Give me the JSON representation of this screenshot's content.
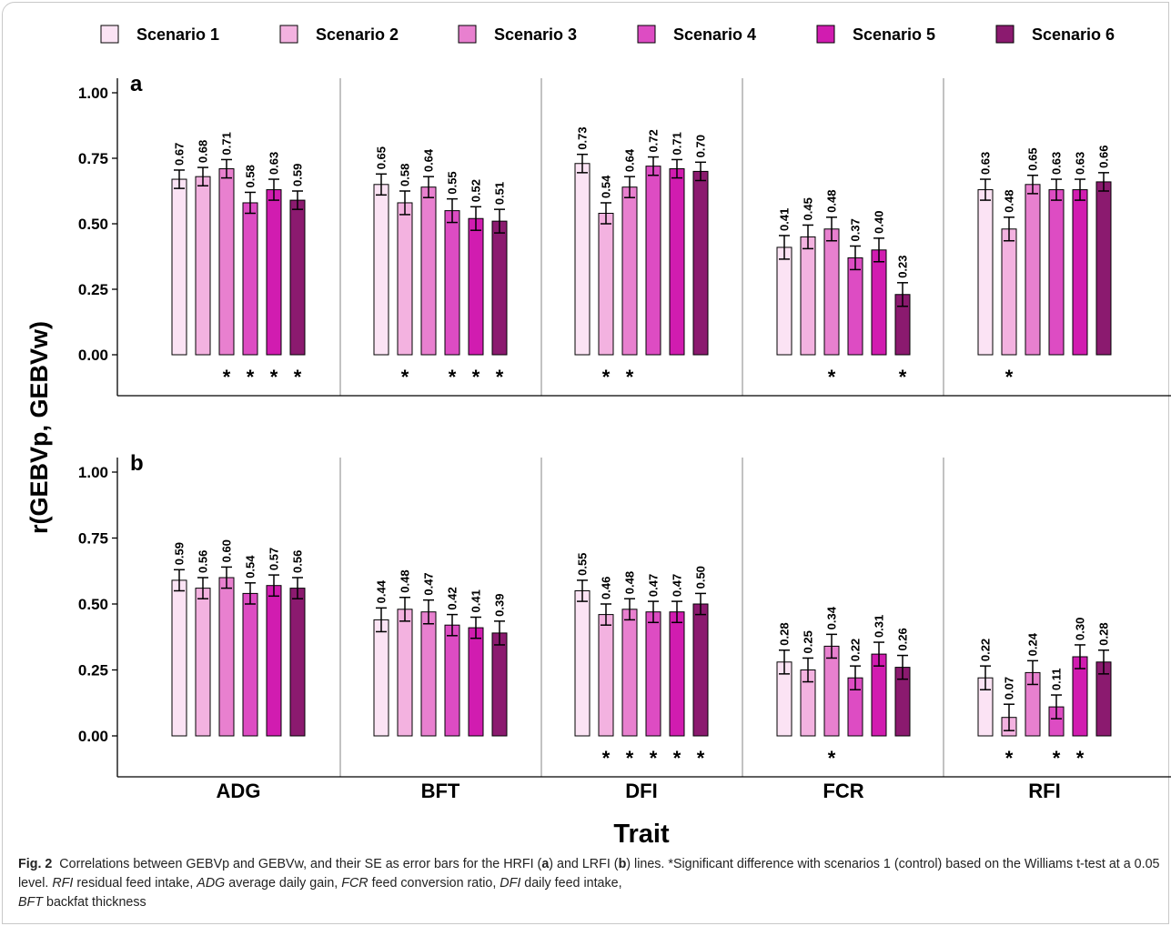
{
  "chart_data": {
    "type": "bar",
    "ylabel": "r(GEBVp, GEBVw)",
    "xlabel": "Trait",
    "categories": [
      "ADG",
      "BFT",
      "DFI",
      "FCR",
      "RFI"
    ],
    "series_names": [
      "Scenario 1",
      "Scenario 2",
      "Scenario 3",
      "Scenario 4",
      "Scenario 5",
      "Scenario 6"
    ],
    "colors": [
      "#fbe3f4",
      "#f3b2e0",
      "#e880cf",
      "#dd4cc3",
      "#d11cb0",
      "#8b1a6f"
    ],
    "ylim": [
      -0.13,
      1.05
    ],
    "yticks": [
      "0.00",
      "0.25",
      "0.50",
      "0.75",
      "1.00"
    ],
    "legend_position": "top",
    "grid": false,
    "panels": [
      {
        "label": "a",
        "values": [
          [
            0.67,
            0.68,
            0.71,
            0.58,
            0.63,
            0.59
          ],
          [
            0.65,
            0.58,
            0.64,
            0.55,
            0.52,
            0.51
          ],
          [
            0.73,
            0.54,
            0.64,
            0.72,
            0.71,
            0.7
          ],
          [
            0.41,
            0.45,
            0.48,
            0.37,
            0.4,
            0.23
          ],
          [
            0.63,
            0.48,
            0.65,
            0.63,
            0.63,
            0.66
          ]
        ],
        "se": [
          [
            0.035,
            0.035,
            0.035,
            0.04,
            0.04,
            0.035
          ],
          [
            0.04,
            0.045,
            0.04,
            0.045,
            0.045,
            0.045
          ],
          [
            0.035,
            0.04,
            0.04,
            0.035,
            0.035,
            0.035
          ],
          [
            0.045,
            0.045,
            0.045,
            0.045,
            0.045,
            0.045
          ],
          [
            0.04,
            0.045,
            0.035,
            0.04,
            0.04,
            0.035
          ]
        ],
        "significant": [
          [
            false,
            false,
            true,
            true,
            true,
            true
          ],
          [
            false,
            true,
            false,
            true,
            true,
            true
          ],
          [
            false,
            true,
            true,
            false,
            false,
            false
          ],
          [
            false,
            false,
            true,
            false,
            false,
            true
          ],
          [
            false,
            true,
            false,
            false,
            false,
            false
          ]
        ]
      },
      {
        "label": "b",
        "values": [
          [
            0.59,
            0.56,
            0.6,
            0.54,
            0.57,
            0.56
          ],
          [
            0.44,
            0.48,
            0.47,
            0.42,
            0.41,
            0.39
          ],
          [
            0.55,
            0.46,
            0.48,
            0.47,
            0.47,
            0.5
          ],
          [
            0.28,
            0.25,
            0.34,
            0.22,
            0.31,
            0.26
          ],
          [
            0.22,
            0.07,
            0.24,
            0.11,
            0.3,
            0.28
          ]
        ],
        "se": [
          [
            0.04,
            0.04,
            0.04,
            0.04,
            0.04,
            0.04
          ],
          [
            0.045,
            0.045,
            0.045,
            0.04,
            0.04,
            0.045
          ],
          [
            0.04,
            0.04,
            0.04,
            0.04,
            0.04,
            0.04
          ],
          [
            0.045,
            0.045,
            0.045,
            0.045,
            0.045,
            0.045
          ],
          [
            0.045,
            0.05,
            0.045,
            0.045,
            0.045,
            0.045
          ]
        ],
        "significant": [
          [
            false,
            false,
            false,
            false,
            false,
            false
          ],
          [
            false,
            false,
            false,
            false,
            false,
            false
          ],
          [
            false,
            true,
            true,
            true,
            true,
            true
          ],
          [
            false,
            false,
            true,
            false,
            false,
            false
          ],
          [
            false,
            true,
            false,
            true,
            true,
            false
          ]
        ]
      }
    ]
  },
  "caption": {
    "fig_label": "Fig. 2",
    "text_1": "Correlations between GEBVp and GEBVw, and their SE as error bars for the HRFI (",
    "bold_a": "a",
    "text_2": ") and LRFI (",
    "bold_b": "b",
    "text_3": ") lines. *Significant difference with scenarios 1 (control) based on the Williams t-test at a 0.05 level. ",
    "abbr_rfi": "RFI",
    "def_rfi": " residual feed intake, ",
    "abbr_adg": "ADG",
    "def_adg": " average daily gain, ",
    "abbr_fcr": "FCR",
    "def_fcr": " feed conversion ratio, ",
    "abbr_dfi": "DFI",
    "def_dfi": " daily feed intake, ",
    "abbr_bft": "BFT",
    "def_bft": " backfat thickness"
  }
}
